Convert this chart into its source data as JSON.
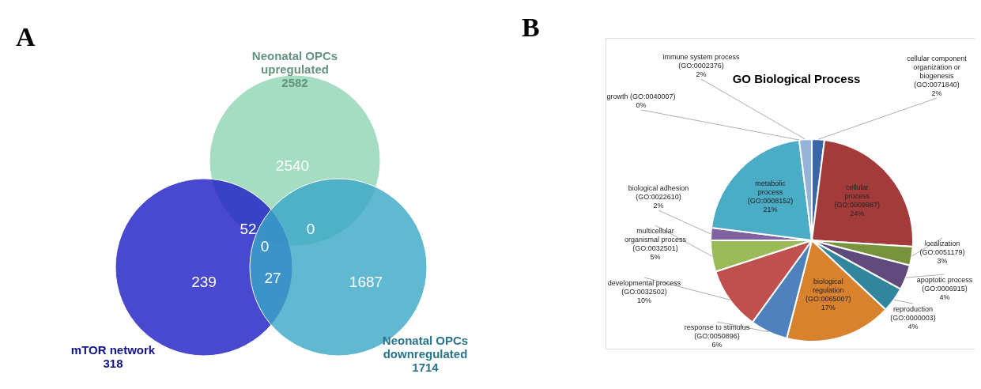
{
  "chart_data": [
    {
      "type": "other",
      "categories": [
        "Neonatal OPCs upregulated",
        "mTOR network",
        "Neonatal OPCs downregulated"
      ],
      "colors": [
        "#8fd4b4",
        "#1c1cc4",
        "#3aa6c6"
      ],
      "value_labels": [
        "2582",
        "318",
        "1714"
      ],
      "annotations": [
        "A",
        "2540",
        "52",
        "0",
        "0",
        "239",
        "27",
        "1687"
      ]
    },
    {
      "type": "pie",
      "title": "GO Biological Process",
      "annotations": [
        "B"
      ],
      "categories": [
        "cellular component organization or biogenesis (GO:0071840)",
        "cellular process (GO:0009987)",
        "localization (GO:0051179)",
        "apoptotic process (GO:0006915)",
        "reproduction (GO:0000003)",
        "biological regulation (GO:0065007)",
        "response to stimulus (GO:0050896)",
        "developmental process (GO:0032502)",
        "multicellular organismal process (GO:0032501)",
        "biological adhesion (GO:0022610)",
        "metabolic process (GO:0008152)",
        "growth (GO:0040007)",
        "immune system process (GO:0002376)"
      ],
      "values": [
        2,
        24,
        3,
        4,
        4,
        17,
        6,
        10,
        5,
        2,
        21,
        0,
        2
      ],
      "value_labels": [
        "2%",
        "24%",
        "3%",
        "4%",
        "4%",
        "17%",
        "6%",
        "10%",
        "5%",
        "2%",
        "21%",
        "0%",
        "2%"
      ],
      "colors": [
        "#3a66a8",
        "#a33b3a",
        "#77933c",
        "#604a7b",
        "#31859c",
        "#d9822e",
        "#4f81bd",
        "#c0504d",
        "#9bbb59",
        "#8064a2",
        "#4bacc6",
        "#f79646",
        "#95b3d7"
      ]
    }
  ]
}
